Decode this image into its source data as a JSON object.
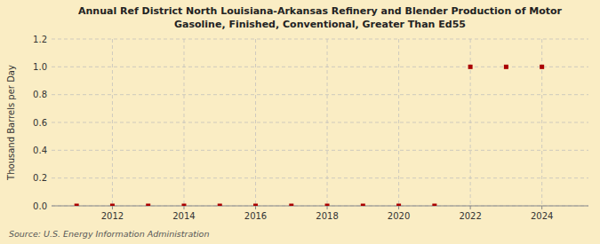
{
  "chart_data": {
    "type": "scatter",
    "title": "Annual Ref District North Louisiana-Arkansas Refinery and Blender Production of Motor\nGasoline, Finished, Conventional, Greater Than Ed55",
    "y_label": "Thousand Barrels per Day",
    "source": "Source: U.S. Energy Information Administration",
    "x": [
      2011,
      2012,
      2013,
      2014,
      2015,
      2016,
      2017,
      2018,
      2019,
      2020,
      2021,
      2022,
      2023,
      2024
    ],
    "values": [
      0,
      0,
      0,
      0,
      0,
      0,
      0,
      0,
      0,
      0,
      0,
      1,
      1,
      1
    ],
    "color": "#aa0000",
    "marker": "square",
    "xlim": [
      2010.3,
      2025.3
    ],
    "xticks": [
      2012,
      2014,
      2016,
      2018,
      2020,
      2022,
      2024
    ],
    "ylim": [
      0.0,
      1.2
    ],
    "yticks": [
      {
        "value": 0.0,
        "label": "0.0"
      },
      0.2,
      0.4,
      0.6,
      0.8,
      {
        "value": 1.0,
        "label": "1.0"
      },
      1.2
    ],
    "grid": true
  }
}
